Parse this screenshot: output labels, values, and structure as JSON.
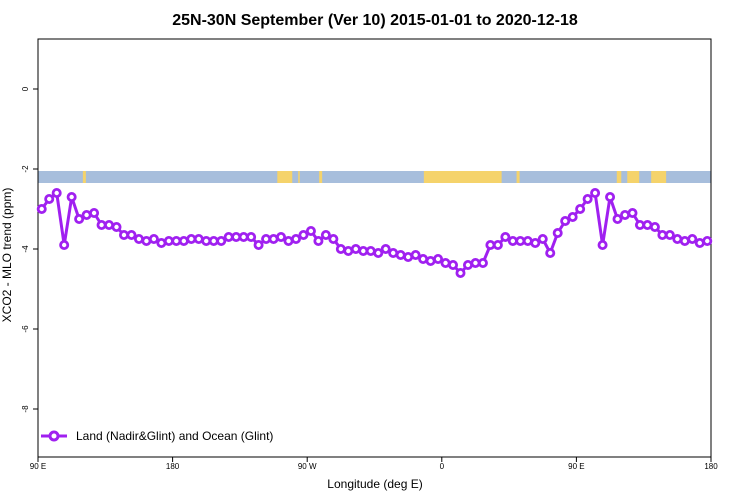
{
  "colors": {
    "series": "#A020F0",
    "land": "#F5D36B",
    "ocean": "#A7BEDC",
    "axis": "#000000",
    "background": "#ffffff"
  },
  "chart_data": {
    "type": "line",
    "title": "25N-30N September (Ver 10)   2015-01-01 to 2020-12-18",
    "xlabel": "Longitude (deg E)",
    "ylabel": "XCO2 - MLO trend (ppm)",
    "xlim": [
      90,
      540
    ],
    "ylim": [
      -9.2,
      1.25
    ],
    "x_ticks": [
      {
        "value": 90,
        "label": "90 E"
      },
      {
        "value": 180,
        "label": "180"
      },
      {
        "value": 270,
        "label": "90 W"
      },
      {
        "value": 360,
        "label": "0"
      },
      {
        "value": 450,
        "label": "90 E"
      },
      {
        "value": 540,
        "label": "180"
      }
    ],
    "y_ticks": [
      {
        "value": 0,
        "label": "0"
      },
      {
        "value": -2,
        "label": "-2"
      },
      {
        "value": -4,
        "label": "-4"
      },
      {
        "value": -6,
        "label": "-6"
      },
      {
        "value": -8,
        "label": "-8"
      }
    ],
    "grid": false,
    "legend_position": "bottom-left",
    "land_band": {
      "y_top": -2.05,
      "y_bottom": -2.35,
      "land_segments": [
        [
          120,
          122
        ],
        [
          250,
          260
        ],
        [
          264,
          265
        ],
        [
          278,
          280
        ],
        [
          348,
          400
        ],
        [
          410,
          412
        ],
        [
          477,
          480
        ],
        [
          484,
          492
        ],
        [
          500,
          510
        ]
      ]
    },
    "series": [
      {
        "name": "Land (Nadir&Glint) and Ocean (Glint)",
        "x": [
          92.5,
          97.5,
          102.5,
          107.5,
          112.5,
          117.5,
          122.5,
          127.5,
          132.5,
          137.5,
          142.5,
          147.5,
          152.5,
          157.5,
          162.5,
          167.5,
          172.5,
          177.5,
          182.5,
          187.5,
          192.5,
          197.5,
          202.5,
          207.5,
          212.5,
          217.5,
          222.5,
          227.5,
          232.5,
          237.5,
          242.5,
          247.5,
          252.5,
          257.5,
          262.5,
          267.5,
          272.5,
          277.5,
          282.5,
          287.5,
          292.5,
          297.5,
          302.5,
          307.5,
          312.5,
          317.5,
          322.5,
          327.5,
          332.5,
          337.5,
          342.5,
          347.5,
          352.5,
          357.5,
          362.5,
          367.5,
          372.5,
          377.5,
          382.5,
          387.5,
          392.5,
          397.5,
          402.5,
          407.5,
          412.5,
          417.5,
          422.5,
          427.5,
          432.5,
          437.5,
          442.5,
          447.5,
          452.5,
          457.5,
          462.5,
          467.5,
          472.5,
          477.5,
          482.5,
          487.5,
          492.5,
          497.5,
          502.5,
          507.5,
          512.5,
          517.5,
          522.5,
          527.5,
          532.5,
          537.5
        ],
        "y": [
          -3.0,
          -2.75,
          -2.6,
          -3.9,
          -2.7,
          -3.25,
          -3.15,
          -3.1,
          -3.4,
          -3.4,
          -3.45,
          -3.65,
          -3.65,
          -3.75,
          -3.8,
          -3.75,
          -3.85,
          -3.8,
          -3.8,
          -3.8,
          -3.75,
          -3.75,
          -3.8,
          -3.8,
          -3.8,
          -3.7,
          -3.7,
          -3.7,
          -3.7,
          -3.9,
          -3.75,
          -3.75,
          -3.7,
          -3.8,
          -3.75,
          -3.65,
          -3.55,
          -3.8,
          -3.65,
          -3.75,
          -4.0,
          -4.05,
          -4.0,
          -4.05,
          -4.05,
          -4.1,
          -4.0,
          -4.1,
          -4.15,
          -4.2,
          -4.15,
          -4.25,
          -4.3,
          -4.25,
          -4.35,
          -4.4,
          -4.6,
          -4.4,
          -4.35,
          -4.35,
          -3.9,
          -3.9,
          -3.7,
          -3.8,
          -3.8,
          -3.8,
          -3.85,
          -3.75,
          -4.1,
          -3.6,
          -3.3,
          -3.2,
          -3.0,
          -2.75,
          -2.6,
          -3.9,
          -2.7,
          -3.25,
          -3.15,
          -3.1,
          -3.4,
          -3.4,
          -3.45,
          -3.65,
          -3.65,
          -3.75,
          -3.8,
          -3.75,
          -3.85,
          -3.8
        ]
      }
    ]
  }
}
